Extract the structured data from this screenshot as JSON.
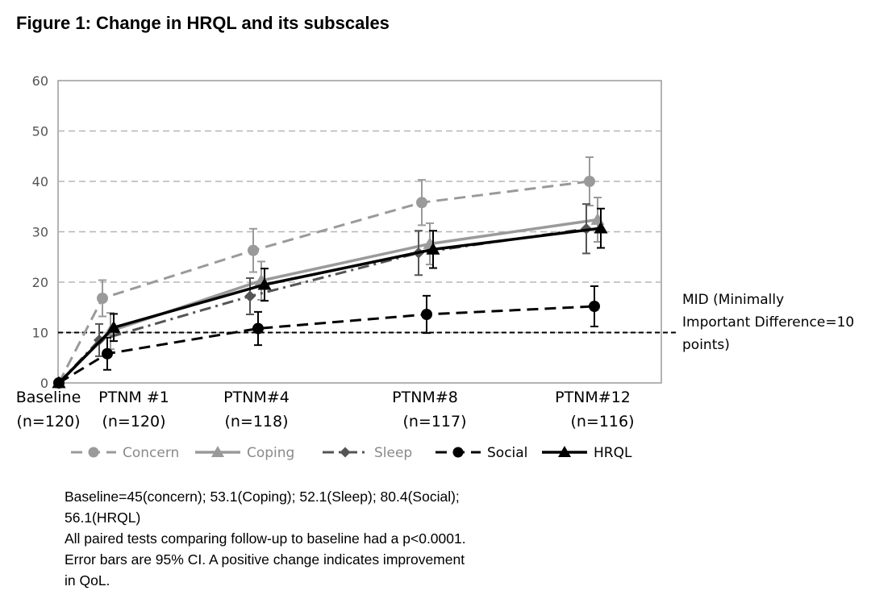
{
  "title": "Figure 1: Change in HRQL and its subscales",
  "mid_note": [
    "MID (Minimally",
    "Important Difference=10",
    "points)"
  ],
  "notes": [
    "Baseline=45(concern);  53.1(Coping);  52.1(Sleep);  80.4(Social);",
    "56.1(HRQL)",
    "All paired tests comparing follow-up to baseline had a p<0.0001.",
    "Error bars are 95% CI. A positive change indicates improvement",
    "in QoL."
  ],
  "chart_data": {
    "type": "line",
    "title": "Change in HRQL and its subscales",
    "ylim": [
      0,
      60
    ],
    "yticks": [
      0,
      10,
      20,
      30,
      40,
      50,
      60
    ],
    "grid": true,
    "legend_position": "bottom",
    "categories": [
      "Baseline",
      "PTNM #1",
      "PTNM#4",
      "PTNM#8",
      "PTNM#12"
    ],
    "category_n": [
      "(n=120)",
      "(n=120)",
      "(n=118)",
      "(n=117)",
      "(n=116)"
    ],
    "reference_line": {
      "y": 10
    },
    "series": [
      {
        "name": "Concern",
        "marker": "circle",
        "dash": "dashed",
        "color": "#9a9a9a",
        "values": [
          0,
          16.8,
          26.3,
          35.8,
          40.0
        ],
        "ci_low": [
          0,
          13.2,
          22.0,
          31.3,
          35.2
        ],
        "ci_high": [
          0,
          20.4,
          30.6,
          40.3,
          44.8
        ]
      },
      {
        "name": "Coping",
        "marker": "triangle",
        "dash": "solid",
        "color": "#9a9a9a",
        "values": [
          0,
          10.3,
          20.3,
          27.6,
          32.4
        ],
        "ci_low": [
          0,
          6.7,
          16.5,
          23.5,
          28.0
        ],
        "ci_high": [
          0,
          13.9,
          24.1,
          31.7,
          36.8
        ]
      },
      {
        "name": "Sleep",
        "marker": "diamond",
        "dash": "dashdot",
        "color": "#555555",
        "values": [
          0,
          8.5,
          17.2,
          25.8,
          30.6
        ],
        "ci_low": [
          0,
          5.3,
          13.6,
          21.4,
          25.7
        ],
        "ci_high": [
          0,
          11.7,
          20.8,
          30.2,
          35.5
        ]
      },
      {
        "name": "Social",
        "marker": "circle",
        "dash": "dashed",
        "color": "#000000",
        "values": [
          0,
          5.8,
          10.8,
          13.6,
          15.2
        ],
        "ci_low": [
          0,
          2.6,
          7.5,
          9.9,
          11.2
        ],
        "ci_high": [
          0,
          9.0,
          14.1,
          17.3,
          19.2
        ]
      },
      {
        "name": "HRQL",
        "marker": "triangle",
        "dash": "solid",
        "color": "#000000",
        "values": [
          0,
          11.0,
          19.5,
          26.5,
          30.7
        ],
        "ci_low": [
          0,
          8.3,
          16.3,
          22.8,
          26.8
        ],
        "ci_high": [
          0,
          13.7,
          22.7,
          30.2,
          34.6
        ]
      }
    ]
  }
}
